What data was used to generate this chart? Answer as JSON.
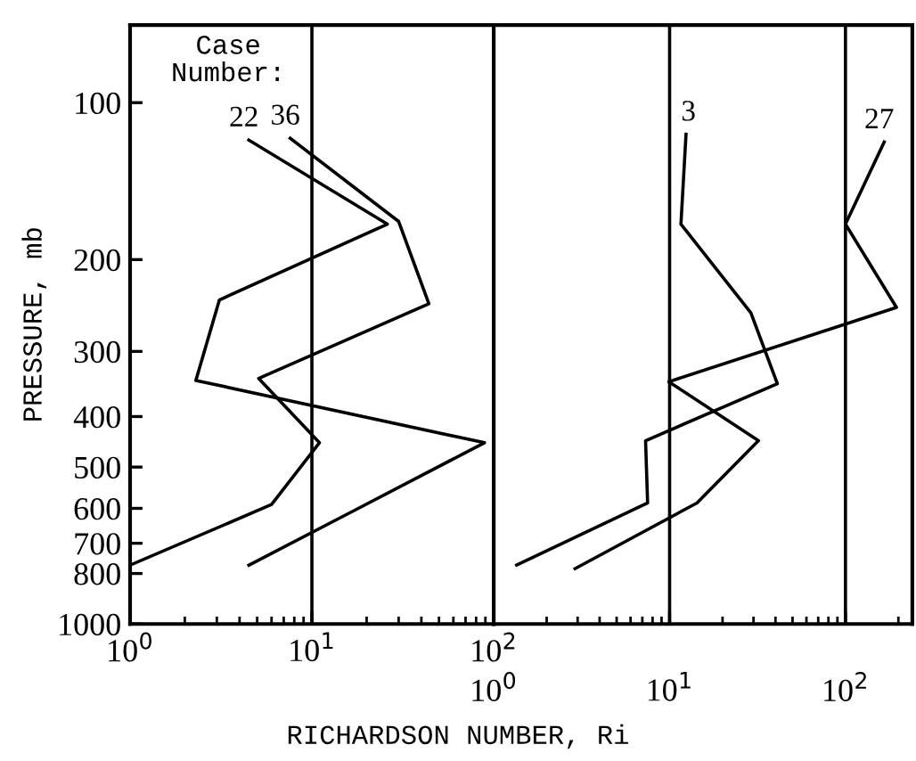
{
  "chart_data": [
    {
      "type": "line",
      "ylabel": "PRESSURE, mb",
      "xlabel": "RICHARDSON NUMBER, Ri",
      "annotations": [
        "Case\nNumber:"
      ],
      "log": "xy",
      "grid": "x",
      "xlim": [
        1,
        100
      ],
      "xticks": [
        {
          "value": 1,
          "label": "10$^{0}$"
        },
        {
          "value": 10,
          "label": "10$^{1}$"
        },
        {
          "value": 100,
          "label": "10$^{2}$"
        }
      ],
      "ylim": [
        1000,
        71
      ],
      "yticks": [
        100,
        200,
        300,
        400,
        500,
        600,
        700,
        800,
        1000
      ],
      "series": [
        {
          "name": "22",
          "color": "#000000",
          "x": [
            4.5,
            26,
            3.1,
            2.3,
            89,
            18,
            4.5
          ],
          "values": [
            118,
            171,
            239,
            341,
            449,
            600,
            771
          ]
        },
        {
          "name": "36",
          "color": "#000000",
          "x": [
            7.6,
            30,
            44,
            5.1,
            11,
            6.0,
            1.0
          ],
          "values": [
            117,
            169,
            243,
            338,
            449,
            590,
            771
          ]
        }
      ]
    },
    {
      "type": "line",
      "log": "xy",
      "grid": "x",
      "tick_labels": "x",
      "xlim": [
        1,
        240
      ],
      "xticks": [
        {
          "value": 1,
          "label": "10$^{0}$"
        },
        {
          "value": 10,
          "label": "10$^{1}$"
        },
        {
          "value": 100,
          "label": "10$^{2}$"
        }
      ],
      "ylim": [
        1000,
        71
      ],
      "series": [
        {
          "name": "3",
          "color": "#000000",
          "x": [
            12.4,
            11.6,
            29,
            41,
            7.3,
            7.5,
            1.35
          ],
          "values": [
            115,
            171,
            253,
            346,
            445,
            586,
            771
          ]
        },
        {
          "name": "27",
          "color": "#000000",
          "x": [
            166,
            100,
            195,
            9.9,
            32,
            14.3,
            2.9
          ],
          "values": [
            119,
            171,
            247,
            343,
            445,
            586,
            783
          ]
        }
      ]
    }
  ]
}
